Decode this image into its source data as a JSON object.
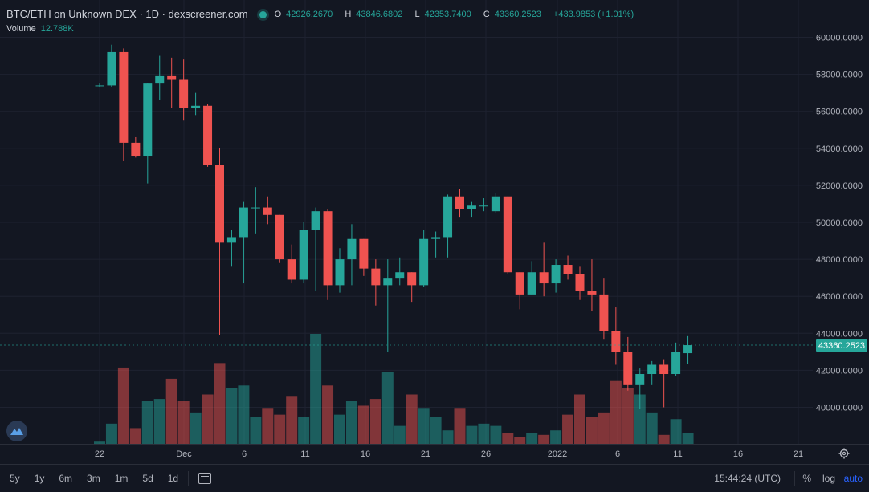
{
  "header": {
    "title": "BTC/ETH on Unknown DEX · 1D · dexscreener.com",
    "ohlc": {
      "o": "42926.2670",
      "h": "43846.6802",
      "l": "42353.7400",
      "c": "43360.2523",
      "chg": "+433.9853 (+1.01%)"
    },
    "volume_label": "Volume",
    "volume_value": "12.788K"
  },
  "price_axis": {
    "labels": [
      "60000.0000",
      "58000.0000",
      "56000.0000",
      "54000.0000",
      "52000.0000",
      "50000.0000",
      "48000.0000",
      "46000.0000",
      "44000.0000",
      "42000.0000",
      "40000.0000"
    ],
    "last_price_label": "43360.2523"
  },
  "time_axis": {
    "labels": [
      "22",
      "Dec",
      "6",
      "11",
      "16",
      "21",
      "26",
      "2022",
      "6",
      "11",
      "16",
      "21"
    ]
  },
  "bottom_bar": {
    "ranges": [
      "5y",
      "1y",
      "6m",
      "3m",
      "1m",
      "5d",
      "1d"
    ],
    "time": "15:44:24 (UTC)",
    "percent": "%",
    "log": "log",
    "auto": "auto"
  },
  "colors": {
    "up": "#26a69a",
    "down": "#ef5350",
    "background": "#131722",
    "grid": "#1e2230",
    "auto": "#2962ff"
  },
  "icons": [
    "status-dot-icon",
    "dexscreener-logo-icon",
    "calendar-icon",
    "gear-icon"
  ],
  "chart_data": {
    "type": "candlestick",
    "ylim": [
      38000,
      61000
    ],
    "candles": [
      {
        "o": 57400,
        "h": 57500,
        "l": 57300,
        "c": 57400,
        "v": 0.1
      },
      {
        "o": 57400,
        "h": 59600,
        "l": 57300,
        "c": 59200,
        "v": 0.9
      },
      {
        "o": 59200,
        "h": 59400,
        "l": 53300,
        "c": 54300,
        "v": 3.4
      },
      {
        "o": 54300,
        "h": 54600,
        "l": 53500,
        "c": 53600,
        "v": 0.7
      },
      {
        "o": 53600,
        "h": 57500,
        "l": 52100,
        "c": 57500,
        "v": 1.9
      },
      {
        "o": 57500,
        "h": 59000,
        "l": 56600,
        "c": 57900,
        "v": 2.0
      },
      {
        "o": 57900,
        "h": 58900,
        "l": 56200,
        "c": 57700,
        "v": 2.9
      },
      {
        "o": 57700,
        "h": 58800,
        "l": 55500,
        "c": 56200,
        "v": 1.9
      },
      {
        "o": 56200,
        "h": 57000,
        "l": 55800,
        "c": 56300,
        "v": 1.4
      },
      {
        "o": 56300,
        "h": 56400,
        "l": 53000,
        "c": 53100,
        "v": 2.2
      },
      {
        "o": 53100,
        "h": 54000,
        "l": 43900,
        "c": 48900,
        "v": 3.6
      },
      {
        "o": 48900,
        "h": 49600,
        "l": 47600,
        "c": 49200,
        "v": 2.5
      },
      {
        "o": 49200,
        "h": 51100,
        "l": 46700,
        "c": 50800,
        "v": 2.6
      },
      {
        "o": 50800,
        "h": 51900,
        "l": 49400,
        "c": 50800,
        "v": 1.2
      },
      {
        "o": 50800,
        "h": 51400,
        "l": 49900,
        "c": 50400,
        "v": 1.6
      },
      {
        "o": 50400,
        "h": 50400,
        "l": 47800,
        "c": 48000,
        "v": 1.3
      },
      {
        "o": 48000,
        "h": 48800,
        "l": 46700,
        "c": 46900,
        "v": 2.1
      },
      {
        "o": 46900,
        "h": 50000,
        "l": 46700,
        "c": 49600,
        "v": 1.2
      },
      {
        "o": 49600,
        "h": 50800,
        "l": 46300,
        "c": 50600,
        "v": 4.9
      },
      {
        "o": 50600,
        "h": 50700,
        "l": 45800,
        "c": 46600,
        "v": 2.6
      },
      {
        "o": 46600,
        "h": 48600,
        "l": 46200,
        "c": 48000,
        "v": 1.3
      },
      {
        "o": 48000,
        "h": 49900,
        "l": 46600,
        "c": 49100,
        "v": 1.9
      },
      {
        "o": 49100,
        "h": 49100,
        "l": 47100,
        "c": 47500,
        "v": 1.7
      },
      {
        "o": 47500,
        "h": 48000,
        "l": 45500,
        "c": 46600,
        "v": 2.0
      },
      {
        "o": 46600,
        "h": 48000,
        "l": 43000,
        "c": 47000,
        "v": 3.2
      },
      {
        "o": 47000,
        "h": 48100,
        "l": 46600,
        "c": 47300,
        "v": 0.8
      },
      {
        "o": 47300,
        "h": 47300,
        "l": 45700,
        "c": 46600,
        "v": 2.2
      },
      {
        "o": 46600,
        "h": 49600,
        "l": 46500,
        "c": 49100,
        "v": 1.6
      },
      {
        "o": 49100,
        "h": 49500,
        "l": 48100,
        "c": 49200,
        "v": 1.2
      },
      {
        "o": 49200,
        "h": 51500,
        "l": 48100,
        "c": 51400,
        "v": 0.6
      },
      {
        "o": 51400,
        "h": 51800,
        "l": 50300,
        "c": 50700,
        "v": 1.6
      },
      {
        "o": 50700,
        "h": 51100,
        "l": 50300,
        "c": 50900,
        "v": 0.8
      },
      {
        "o": 50900,
        "h": 51300,
        "l": 50600,
        "c": 50900,
        "v": 0.9
      },
      {
        "o": 50600,
        "h": 51600,
        "l": 50500,
        "c": 51400,
        "v": 0.8
      },
      {
        "o": 51400,
        "h": 51400,
        "l": 47200,
        "c": 47300,
        "v": 0.5
      },
      {
        "o": 47300,
        "h": 47300,
        "l": 45300,
        "c": 46100,
        "v": 0.3
      },
      {
        "o": 46100,
        "h": 47900,
        "l": 46100,
        "c": 47300,
        "v": 0.5
      },
      {
        "o": 47300,
        "h": 48900,
        "l": 46000,
        "c": 46700,
        "v": 0.4
      },
      {
        "o": 46700,
        "h": 48000,
        "l": 46200,
        "c": 47700,
        "v": 0.6
      },
      {
        "o": 47700,
        "h": 48200,
        "l": 46900,
        "c": 47200,
        "v": 1.3
      },
      {
        "o": 47200,
        "h": 47600,
        "l": 45800,
        "c": 46300,
        "v": 2.2
      },
      {
        "o": 46300,
        "h": 48000,
        "l": 45200,
        "c": 46100,
        "v": 1.2
      },
      {
        "o": 46100,
        "h": 47000,
        "l": 43700,
        "c": 44100,
        "v": 1.4
      },
      {
        "o": 44100,
        "h": 45400,
        "l": 42300,
        "c": 43000,
        "v": 2.8
      },
      {
        "o": 43000,
        "h": 43800,
        "l": 40900,
        "c": 41200,
        "v": 2.5
      },
      {
        "o": 41200,
        "h": 42100,
        "l": 39900,
        "c": 41800,
        "v": 2.2
      },
      {
        "o": 41800,
        "h": 42500,
        "l": 41200,
        "c": 42300,
        "v": 1.4
      },
      {
        "o": 42300,
        "h": 42600,
        "l": 40000,
        "c": 41800,
        "v": 0.4
      },
      {
        "o": 41800,
        "h": 43500,
        "l": 41700,
        "c": 43000,
        "v": 1.1
      },
      {
        "o": 42926,
        "h": 43847,
        "l": 42354,
        "c": 43360,
        "v": 0.5
      }
    ]
  }
}
